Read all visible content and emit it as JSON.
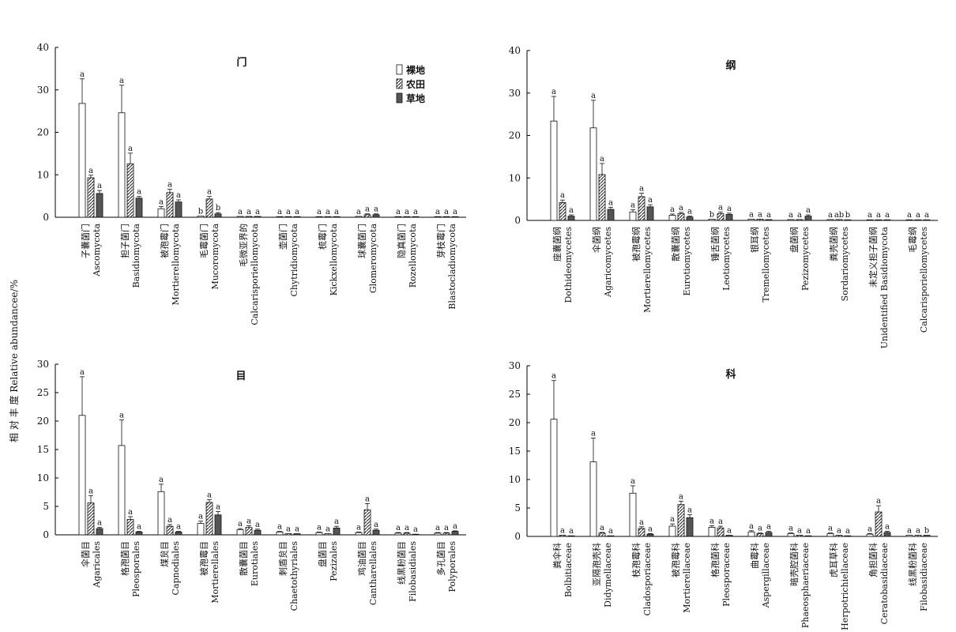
{
  "figure": {
    "ylabel": "相 对 丰 度 Relative abundancee/%",
    "legend": [
      "裸地",
      "农田",
      "草地"
    ],
    "legend_placement": "top-right of first panel"
  },
  "chart_data": [
    {
      "type": "bar",
      "title": "门",
      "ylim": [
        0,
        40
      ],
      "yticks": [
        0,
        10,
        20,
        30,
        40
      ],
      "categories": [
        [
          "子囊菌门",
          "Ascomycota"
        ],
        [
          "担子菌门",
          "Basidiomycota"
        ],
        [
          "被孢霉门",
          "Mortierellomycota"
        ],
        [
          "毛霉菌门",
          "Mucoromycota"
        ],
        [
          "毛微亚界的",
          "Calcarisporiellomycota"
        ],
        [
          "壶菌门",
          "Chytridiomycota"
        ],
        [
          "梳霉门",
          "Kickxellomycota"
        ],
        [
          "球囊菌门",
          "Glomeromycota"
        ],
        [
          "隐真菌门",
          "Rozellomycota"
        ],
        [
          "芽枝霉门",
          "Blastocladiomycota"
        ]
      ],
      "series": [
        {
          "name": "裸地",
          "values": [
            26.8,
            24.6,
            2.0,
            0.3,
            0.2,
            0.1,
            0.1,
            0.2,
            0.1,
            0.1
          ],
          "errors": [
            5.8,
            6.5,
            0.5,
            0,
            0,
            0,
            0,
            0,
            0,
            0
          ],
          "sig": [
            "a",
            "a",
            "a",
            "b",
            "a",
            "a",
            "a",
            "a",
            "a",
            "a"
          ]
        },
        {
          "name": "农田",
          "values": [
            9.3,
            12.6,
            5.8,
            4.3,
            0.2,
            0.1,
            0.1,
            0.6,
            0.1,
            0.1
          ],
          "errors": [
            0.6,
            2.5,
            0.8,
            0.6,
            0,
            0,
            0,
            0.2,
            0,
            0
          ],
          "sig": [
            "a",
            "a",
            "a",
            "a",
            "a",
            "a",
            "a",
            "a",
            "a",
            "a"
          ]
        },
        {
          "name": "草地",
          "values": [
            5.6,
            4.5,
            3.6,
            0.8,
            0.2,
            0.1,
            0.1,
            0.6,
            0.1,
            0.1
          ],
          "errors": [
            0.7,
            0.4,
            0.5,
            0.3,
            0,
            0,
            0,
            0.2,
            0,
            0
          ],
          "sig": [
            "a",
            "a",
            "a",
            "b",
            "a",
            "a",
            "a",
            "a",
            "a",
            "a"
          ]
        }
      ]
    },
    {
      "type": "bar",
      "title": "纲",
      "ylim": [
        0,
        40
      ],
      "yticks": [
        0,
        10,
        20,
        30,
        40
      ],
      "categories": [
        [
          "座囊菌纲",
          "Dothideomycetes"
        ],
        [
          "伞菌纲",
          "Agaricomycetes"
        ],
        [
          "被孢霉纲",
          "Mortierellomycetes"
        ],
        [
          "散囊菌纲",
          "Eurotiomycetes"
        ],
        [
          "锤舌菌纲",
          "Leotiomycetes"
        ],
        [
          "银耳纲",
          "Tremellomycetes"
        ],
        [
          "盘菌纲",
          "Pezizomycetes"
        ],
        [
          "粪壳菌纲",
          "Sordariomycetes"
        ],
        [
          "未定义担子菌纲",
          "Unidentified Basidiomycota"
        ],
        [
          "毛霉纲",
          "Calcarisporiellomycetes"
        ]
      ],
      "series": [
        {
          "name": "裸地",
          "values": [
            23.4,
            21.8,
            2.0,
            1.2,
            0.3,
            0.3,
            0.2,
            0.2,
            0.1,
            0.1
          ],
          "errors": [
            5.8,
            6.5,
            0.5,
            0.3,
            0,
            0,
            0,
            0,
            0,
            0
          ],
          "sig": [
            "a",
            "a",
            "a",
            "a",
            "b",
            "a",
            "a",
            "a",
            "a",
            "a"
          ]
        },
        {
          "name": "农田",
          "values": [
            4.2,
            10.8,
            5.6,
            1.6,
            1.6,
            0.3,
            0.2,
            0.2,
            0.1,
            0.1
          ],
          "errors": [
            0.6,
            2.6,
            0.8,
            0.3,
            0.4,
            0,
            0,
            0,
            0,
            0
          ],
          "sig": [
            "a",
            "a",
            "a",
            "a",
            "a",
            "a",
            "a",
            "ab",
            "a",
            "a"
          ]
        },
        {
          "name": "草地",
          "values": [
            1.0,
            2.6,
            3.2,
            0.8,
            1.4,
            0.2,
            1.0,
            0.1,
            0.1,
            0.1
          ],
          "errors": [
            0.3,
            0.5,
            0.5,
            0.2,
            0.3,
            0,
            0.3,
            0,
            0,
            0
          ],
          "sig": [
            "a",
            "a",
            "a",
            "a",
            "a",
            "a",
            "a",
            "b",
            "a",
            "a"
          ]
        }
      ]
    },
    {
      "type": "bar",
      "title": "目",
      "ylim": [
        0,
        30
      ],
      "yticks": [
        0,
        5,
        10,
        15,
        20,
        25,
        30
      ],
      "categories": [
        [
          "伞菌目",
          "Agaricales"
        ],
        [
          "格孢菌目",
          "Pleosporales"
        ],
        [
          "煤炱目",
          "Capnodiales"
        ],
        [
          "被孢霉目",
          "Mortierellales"
        ],
        [
          "散囊菌目",
          "Eurotiales"
        ],
        [
          "刺盾炱目",
          "Chaetothyriales"
        ],
        [
          "盘菌目",
          "Pezizales"
        ],
        [
          "鸡油菌目",
          "Cantharellales"
        ],
        [
          "线黑粉菌目",
          "Filobasidiales"
        ],
        [
          "多孔菌目",
          "Polyporales"
        ]
      ],
      "series": [
        {
          "name": "裸地",
          "values": [
            21.0,
            15.7,
            7.6,
            2.0,
            0.9,
            0.5,
            0.4,
            0.4,
            0.3,
            0.3
          ],
          "errors": [
            6.8,
            4.5,
            1.3,
            0.4,
            0.2,
            0.1,
            0.1,
            0.1,
            0.1,
            0.1
          ],
          "sig": [
            "a",
            "a",
            "a",
            "a",
            "a",
            "a",
            "a",
            "a",
            "a",
            "a"
          ]
        },
        {
          "name": "农田",
          "values": [
            5.6,
            2.7,
            1.5,
            5.7,
            1.3,
            0.2,
            0.2,
            4.4,
            0.3,
            0.3
          ],
          "errors": [
            1.3,
            0.5,
            0.3,
            0.5,
            0.3,
            0,
            0,
            1.1,
            0.1,
            0.1
          ],
          "sig": [
            "a",
            "a",
            "a",
            "a",
            "a",
            "a",
            "a",
            "a",
            "a",
            "a"
          ]
        },
        {
          "name": "草地",
          "values": [
            1.1,
            0.5,
            0.5,
            3.5,
            0.8,
            0.2,
            1.2,
            0.8,
            0.1,
            0.6
          ],
          "errors": [
            0.2,
            0.1,
            0.1,
            0.6,
            0.2,
            0,
            0.3,
            0.2,
            0,
            0.1
          ],
          "sig": [
            "a",
            "a",
            "a",
            "a",
            "a",
            "a",
            "a",
            "a",
            "a",
            "a"
          ]
        }
      ]
    },
    {
      "type": "bar",
      "title": "科",
      "ylim": [
        0,
        30
      ],
      "yticks": [
        0,
        5,
        10,
        15,
        20,
        25,
        30
      ],
      "categories": [
        [
          "粪伞科",
          "Bolbitiaceae"
        ],
        [
          "亚隔孢壳科",
          "Didymellaceae"
        ],
        [
          "枝孢霉科",
          "Cladosporiaceae"
        ],
        [
          "被孢霉科",
          "Mortierellaceae"
        ],
        [
          "格孢菌科",
          "Pleosporaceae"
        ],
        [
          "曲霉科",
          "Aspergillaceae"
        ],
        [
          "暗壳腔菌科",
          "Phaeosphaeriaceae"
        ],
        [
          "虎耳草科",
          "Herpotrichiellaceae"
        ],
        [
          "角担菌科",
          "Ceratobasidiaceae"
        ],
        [
          "线黑粉菌科",
          "Filobasidiaceae"
        ]
      ],
      "series": [
        {
          "name": "裸地",
          "values": [
            20.6,
            13.1,
            7.6,
            1.8,
            1.6,
            0.8,
            0.5,
            0.5,
            0.4,
            0.2
          ],
          "errors": [
            6.8,
            4.2,
            1.3,
            0.4,
            0.3,
            0.2,
            0.1,
            0.1,
            0.1,
            0
          ],
          "sig": [
            "a",
            "a",
            "a",
            "a",
            "a",
            "a",
            "a",
            "a",
            "a",
            "a"
          ]
        },
        {
          "name": "农田",
          "values": [
            0.2,
            0.6,
            1.4,
            5.6,
            1.5,
            0.5,
            0.2,
            0.2,
            4.3,
            0.2
          ],
          "errors": [
            0,
            0.1,
            0.3,
            0.6,
            0.3,
            0.1,
            0,
            0,
            1.1,
            0
          ],
          "sig": [
            "a",
            "a",
            "a",
            "a",
            "a",
            "a",
            "a",
            "a",
            "a",
            "a"
          ]
        },
        {
          "name": "草地",
          "values": [
            0.1,
            0.1,
            0.4,
            3.3,
            0.2,
            0.7,
            0.1,
            0.1,
            0.7,
            0.2
          ],
          "errors": [
            0,
            0,
            0.1,
            0.5,
            0,
            0.2,
            0,
            0,
            0.2,
            0
          ],
          "sig": [
            "a",
            "a",
            "a",
            "a",
            "a",
            "a",
            "a",
            "a",
            "a",
            "b"
          ]
        }
      ]
    }
  ]
}
